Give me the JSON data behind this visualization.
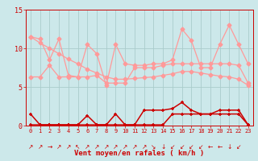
{
  "background_color": "#cce8ea",
  "grid_color": "#aacccc",
  "x": [
    0,
    1,
    2,
    3,
    4,
    5,
    6,
    7,
    8,
    9,
    10,
    11,
    12,
    13,
    14,
    15,
    16,
    17,
    18,
    19,
    20,
    21,
    22,
    23
  ],
  "light_pink": "#ff9999",
  "dark_red": "#cc0000",
  "line_trend": [
    11.5,
    10.7,
    10.0,
    9.3,
    8.6,
    8.0,
    7.3,
    6.8,
    6.3,
    6.0,
    6.0,
    6.1,
    6.2,
    6.3,
    6.5,
    6.7,
    7.0,
    7.0,
    6.8,
    6.6,
    6.4,
    6.3,
    6.0,
    5.2
  ],
  "line_rafales": [
    11.5,
    11.2,
    8.5,
    11.2,
    6.5,
    6.3,
    10.5,
    9.3,
    5.2,
    10.5,
    8.0,
    7.8,
    7.8,
    8.0,
    8.0,
    8.5,
    12.5,
    11.0,
    7.5,
    7.5,
    10.5,
    13.0,
    10.5,
    8.0
  ],
  "line_mid": [
    6.3,
    6.3,
    7.8,
    6.3,
    6.3,
    6.3,
    6.3,
    6.5,
    5.5,
    5.5,
    5.5,
    7.5,
    7.5,
    7.5,
    7.8,
    8.0,
    8.0,
    8.0,
    8.0,
    8.0,
    8.0,
    8.0,
    7.8,
    5.5
  ],
  "vent_moyen1": [
    1.5,
    0.1,
    0.1,
    0.1,
    0.1,
    0.1,
    1.3,
    0.1,
    0.1,
    1.5,
    0.1,
    0.1,
    2.0,
    2.0,
    2.0,
    2.2,
    3.0,
    2.0,
    1.5,
    1.5,
    2.0,
    2.0,
    2.0,
    0.1
  ],
  "vent_moyen2": [
    0.1,
    0.1,
    0.1,
    0.1,
    0.1,
    0.1,
    0.1,
    0.1,
    0.1,
    0.1,
    0.1,
    0.1,
    0.1,
    0.1,
    0.1,
    1.5,
    1.5,
    1.5,
    1.5,
    1.5,
    1.5,
    1.5,
    1.5,
    0.1
  ],
  "arrows": [
    "↗",
    "↗",
    "→",
    "↗",
    "↗",
    "↖",
    "↗",
    "↗",
    "↗",
    "↗",
    "↗",
    "↗",
    "↗",
    "↘",
    "↓",
    "↙",
    "↙",
    "↙",
    "↙",
    "←",
    "←",
    "↓",
    "↙",
    ""
  ],
  "xlabel": "Vent moyen/en rafales ( km/h )",
  "yticks": [
    0,
    5,
    10,
    15
  ],
  "xticks": [
    0,
    1,
    2,
    3,
    4,
    5,
    6,
    7,
    8,
    9,
    10,
    11,
    12,
    13,
    14,
    15,
    16,
    17,
    18,
    19,
    20,
    21,
    22,
    23
  ]
}
